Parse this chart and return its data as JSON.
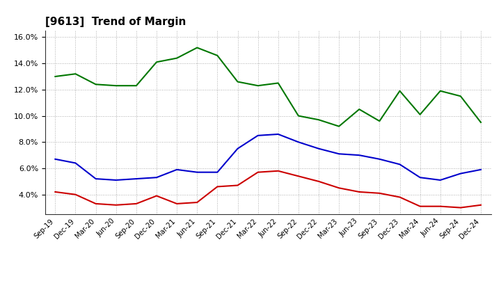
{
  "title": "[9613]  Trend of Margin",
  "title_fontsize": 11,
  "title_fontweight": "bold",
  "x_labels": [
    "Sep-19",
    "Dec-19",
    "Mar-20",
    "Jun-20",
    "Sep-20",
    "Dec-20",
    "Mar-21",
    "Jun-21",
    "Sep-21",
    "Dec-21",
    "Mar-22",
    "Jun-22",
    "Sep-22",
    "Dec-22",
    "Mar-23",
    "Jun-23",
    "Sep-23",
    "Dec-23",
    "Mar-24",
    "Jun-24",
    "Sep-24",
    "Dec-24"
  ],
  "ordinary_income": [
    6.7,
    6.4,
    5.2,
    5.1,
    5.2,
    5.3,
    5.9,
    5.7,
    5.7,
    7.5,
    8.5,
    8.6,
    8.0,
    7.5,
    7.1,
    7.0,
    6.7,
    6.3,
    5.3,
    5.1,
    5.6,
    5.9
  ],
  "net_income": [
    4.2,
    4.0,
    3.3,
    3.2,
    3.3,
    3.9,
    3.3,
    3.4,
    4.6,
    4.7,
    5.7,
    5.8,
    5.4,
    5.0,
    4.5,
    4.2,
    4.1,
    3.8,
    3.1,
    3.1,
    3.0,
    3.2
  ],
  "operating_cashflow": [
    13.0,
    13.2,
    12.4,
    12.3,
    12.3,
    14.1,
    14.4,
    15.2,
    14.6,
    12.6,
    12.3,
    12.5,
    10.0,
    9.7,
    9.2,
    10.5,
    9.6,
    11.9,
    10.1,
    11.9,
    11.5,
    9.5
  ],
  "line_colors": {
    "ordinary_income": "#0000cc",
    "net_income": "#cc0000",
    "operating_cashflow": "#007700"
  },
  "ylim": [
    2.5,
    16.5
  ],
  "yticks": [
    4.0,
    6.0,
    8.0,
    10.0,
    12.0,
    14.0,
    16.0
  ],
  "background_color": "#ffffff",
  "grid_color": "#999999",
  "line_width": 1.5
}
